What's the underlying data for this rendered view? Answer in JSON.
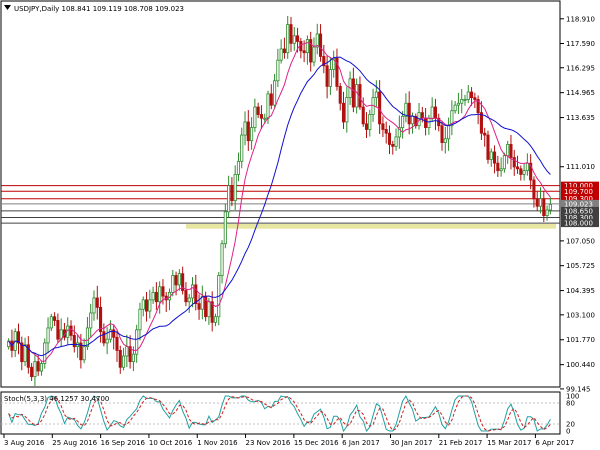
{
  "chart_data": {
    "type": "candlestick",
    "title": "USDJPY,Daily  108.841 109.119 108.708 109.023",
    "symbol": "USDJPY",
    "timeframe": "Daily",
    "ohlc_header": {
      "open": 108.841,
      "high": 109.119,
      "low": 108.708,
      "close": 109.023
    },
    "ylim": [
      99.3,
      119.7
    ],
    "y_ticks": [
      {
        "label": "118.910",
        "value": 118.91
      },
      {
        "label": "117.590",
        "value": 117.59
      },
      {
        "label": "116.295",
        "value": 116.295
      },
      {
        "label": "114.965",
        "value": 114.965
      },
      {
        "label": "113.635",
        "value": 113.635
      },
      {
        "label": "111.010",
        "value": 111.01
      },
      {
        "label": "107.050",
        "value": 107.05
      },
      {
        "label": "105.725",
        "value": 105.725
      },
      {
        "label": "104.395",
        "value": 104.395
      },
      {
        "label": "103.100",
        "value": 103.1
      },
      {
        "label": "101.770",
        "value": 101.77
      },
      {
        "label": "100.440",
        "value": 100.44
      },
      {
        "label": "99.145",
        "value": 99.145
      }
    ],
    "x_ticks": [
      "3 Aug 2016",
      "25 Aug 2016",
      "16 Sep 2016",
      "10 Oct 2016",
      "1 Nov 2016",
      "23 Nov 2016",
      "15 Dec 2016",
      "6 Jan 2017",
      "30 Jan 2017",
      "21 Feb 2017",
      "15 Mar 2017",
      "6 Apr 2017"
    ],
    "levels": [
      {
        "label": "110.000",
        "value": 110.0,
        "color": "#c00000"
      },
      {
        "label": "109.700",
        "value": 109.7,
        "color": "#c00000"
      },
      {
        "label": "109.300",
        "value": 109.3,
        "color": "#c00000"
      },
      {
        "label": "109.023",
        "value": 109.023,
        "color": "#808080"
      },
      {
        "label": "108.650",
        "value": 108.65,
        "color": "#404040"
      },
      {
        "label": "108.300",
        "value": 108.3,
        "color": "#404040"
      },
      {
        "label": "108.000",
        "value": 108.0,
        "color": "#404040"
      }
    ],
    "support_band": {
      "from": 107.7,
      "to": 107.95,
      "color": "#e6e6a0"
    },
    "close_series": [
      101.7,
      101.2,
      102.2,
      101.6,
      100.6,
      101.5,
      100.3,
      99.8,
      100.6,
      100.1,
      100.5,
      101.6,
      102.4,
      103.0,
      102.8,
      101.8,
      102.3,
      101.9,
      102.5,
      102.0,
      101.4,
      101.6,
      100.7,
      101.4,
      102.4,
      103.2,
      104.0,
      103.5,
      102.2,
      101.6,
      101.8,
      102.3,
      101.9,
      101.2,
      100.3,
      100.9,
      101.4,
      100.6,
      101.0,
      102.3,
      103.4,
      103.9,
      103.3,
      103.9,
      104.3,
      103.8,
      104.6,
      104.1,
      103.9,
      104.3,
      105.2,
      104.7,
      105.3,
      104.4,
      103.8,
      104.0,
      104.7,
      103.7,
      103.4,
      104.1,
      103.0,
      103.8,
      102.7,
      103.0,
      105.2,
      106.9,
      108.6,
      110.0,
      109.2,
      110.6,
      111.3,
      112.7,
      113.4,
      112.4,
      113.1,
      114.2,
      113.8,
      113.6,
      113.6,
      114.9,
      114.3,
      115.6,
      116.7,
      117.3,
      117.1,
      118.6,
      117.6,
      118.0,
      117.7,
      117.2,
      117.1,
      117.8,
      116.6,
      117.4,
      118.1,
      116.9,
      116.4,
      115.3,
      116.2,
      116.8,
      115.3,
      114.4,
      113.4,
      114.7,
      115.7,
      114.2,
      115.4,
      114.2,
      113.3,
      113.0,
      113.8,
      114.7,
      115.0,
      113.3,
      113.0,
      112.8,
      112.2,
      112.1,
      112.6,
      113.1,
      113.7,
      114.4,
      113.3,
      113.7,
      113.2,
      113.9,
      113.6,
      113.1,
      113.6,
      114.2,
      113.6,
      113.2,
      112.3,
      112.5,
      113.2,
      114.0,
      114.3,
      114.4,
      114.6,
      114.6,
      115.0,
      114.7,
      114.6,
      113.9,
      112.8,
      112.7,
      111.4,
      111.8,
      111.2,
      110.8,
      110.9,
      111.6,
      112.2,
      111.5,
      111.0,
      110.9,
      110.6,
      110.8,
      111.2,
      110.3,
      109.3,
      108.9,
      109.3,
      108.4,
      108.7,
      109.0
    ],
    "indicators": [
      "MA (fast, pink)",
      "MA (slow, blue)"
    ],
    "stochastic": {
      "label": "Stoch(5,3,3) 46.1257 30.4700",
      "main": 46.1257,
      "signal": 30.47,
      "levels_right": [
        "100",
        "80",
        "20",
        "0"
      ]
    }
  }
}
